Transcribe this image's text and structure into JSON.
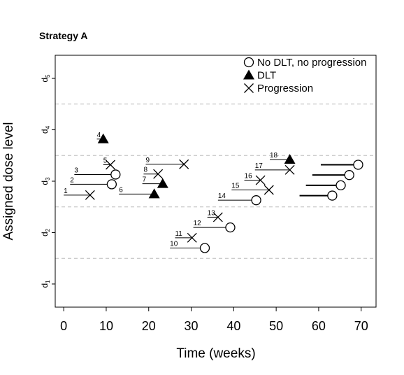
{
  "chart_data": {
    "type": "scatter",
    "title": "Strategy A",
    "xlabel": "Time (weeks)",
    "ylabel": "Assigned dose level",
    "xlim": [
      -2,
      73.5
    ],
    "ylim": [
      0.55,
      5.45
    ],
    "x_ticks": [
      0,
      10,
      20,
      30,
      40,
      50,
      60,
      70
    ],
    "x_tick_labels": [
      "0",
      "10",
      "20",
      "30",
      "40",
      "50",
      "60",
      "70"
    ],
    "y_ticks": [
      {
        "value": 1,
        "main": "d",
        "sub": "1"
      },
      {
        "value": 2,
        "main": "d",
        "sub": "2"
      },
      {
        "value": 3,
        "main": "d",
        "sub": "3"
      },
      {
        "value": 4,
        "main": "d",
        "sub": "4"
      },
      {
        "value": 5,
        "main": "d",
        "sub": "5"
      }
    ],
    "grid_y": [
      1.5,
      2.5,
      3.5,
      4.5
    ],
    "grid": "dashed horizontal between dose levels",
    "legend_position": "top-right",
    "legend": [
      {
        "symbol": "circle",
        "label": "No DLT, no progression"
      },
      {
        "symbol": "triangle",
        "label": "DLT"
      },
      {
        "symbol": "cross",
        "label": "Progression"
      }
    ],
    "patients": [
      {
        "id": "1",
        "dose": 3,
        "start": 0,
        "end": 6.2,
        "y": 2.73,
        "outcome": "cross"
      },
      {
        "id": "2",
        "dose": 3,
        "start": 1.5,
        "end": 11.3,
        "y": 2.94,
        "outcome": "circle"
      },
      {
        "id": "3",
        "dose": 3,
        "start": 2.5,
        "end": 12.2,
        "y": 3.13,
        "outcome": "circle"
      },
      {
        "id": "4",
        "dose": 4,
        "start": 7.8,
        "end": 9.3,
        "y": 3.82,
        "outcome": "triangle"
      },
      {
        "id": "5",
        "dose": 3,
        "start": 9.3,
        "end": 11.0,
        "y": 3.32,
        "outcome": "cross"
      },
      {
        "id": "6",
        "dose": 3,
        "start": 13.0,
        "end": 21.3,
        "y": 2.75,
        "outcome": "triangle"
      },
      {
        "id": "7",
        "dose": 3,
        "start": 18.5,
        "end": 23.3,
        "y": 2.95,
        "outcome": "triangle"
      },
      {
        "id": "8",
        "dose": 3,
        "start": 18.8,
        "end": 22.2,
        "y": 3.14,
        "outcome": "cross"
      },
      {
        "id": "9",
        "dose": 3,
        "start": 19.3,
        "end": 28.3,
        "y": 3.33,
        "outcome": "cross"
      },
      {
        "id": "10",
        "dose": 2,
        "start": 25.0,
        "end": 33.2,
        "y": 1.7,
        "outcome": "circle"
      },
      {
        "id": "11",
        "dose": 2,
        "start": 26.2,
        "end": 30.2,
        "y": 1.9,
        "outcome": "cross"
      },
      {
        "id": "12",
        "dose": 2,
        "start": 30.5,
        "end": 39.2,
        "y": 2.1,
        "outcome": "circle"
      },
      {
        "id": "13",
        "dose": 2,
        "start": 33.8,
        "end": 36.3,
        "y": 2.3,
        "outcome": "cross"
      },
      {
        "id": "14",
        "dose": 3,
        "start": 36.3,
        "end": 45.3,
        "y": 2.63,
        "outcome": "circle"
      },
      {
        "id": "15",
        "dose": 3,
        "start": 39.5,
        "end": 48.3,
        "y": 2.83,
        "outcome": "cross"
      },
      {
        "id": "16",
        "dose": 3,
        "start": 42.5,
        "end": 46.3,
        "y": 3.02,
        "outcome": "cross"
      },
      {
        "id": "17",
        "dose": 3,
        "start": 45.0,
        "end": 53.2,
        "y": 3.22,
        "outcome": "cross"
      },
      {
        "id": "18",
        "dose": 3,
        "start": 48.5,
        "end": 53.2,
        "y": 3.42,
        "outcome": "triangle"
      },
      {
        "id": "",
        "dose": 3,
        "start": 55.5,
        "end": 63.2,
        "y": 2.72,
        "outcome": "circle",
        "ongoing": true
      },
      {
        "id": "",
        "dose": 3,
        "start": 57.0,
        "end": 65.2,
        "y": 2.92,
        "outcome": "circle",
        "ongoing": true
      },
      {
        "id": "",
        "dose": 3,
        "start": 58.5,
        "end": 67.2,
        "y": 3.12,
        "outcome": "circle",
        "ongoing": true
      },
      {
        "id": "",
        "dose": 3,
        "start": 60.5,
        "end": 69.3,
        "y": 3.32,
        "outcome": "circle",
        "ongoing": true
      }
    ]
  }
}
